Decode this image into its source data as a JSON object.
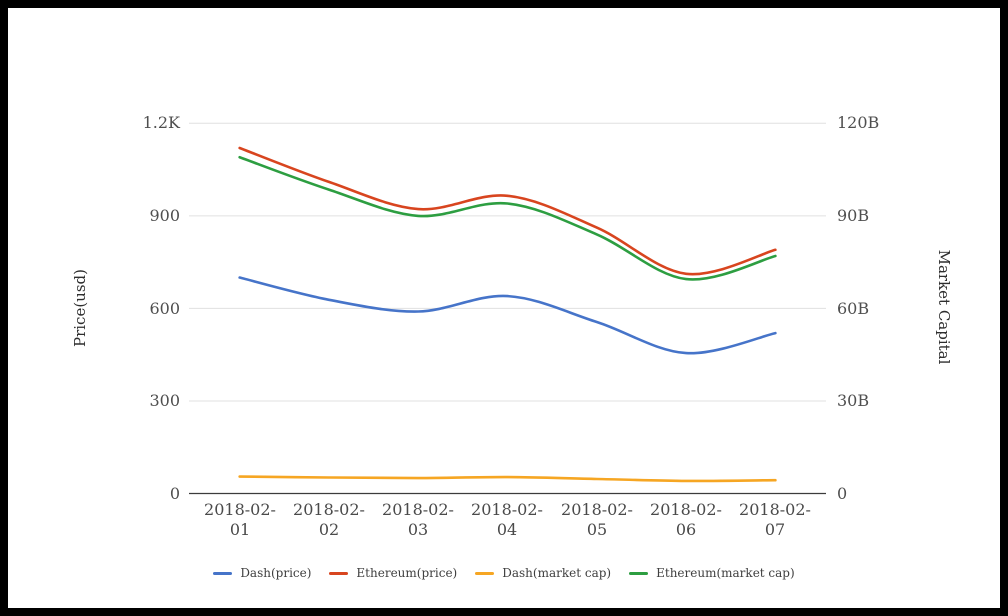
{
  "chart_data": {
    "type": "line",
    "smooth": true,
    "grid": true,
    "legend_position": "bottom",
    "categories": [
      "2018-02-01",
      "2018-02-02",
      "2018-02-03",
      "2018-02-04",
      "2018-02-05",
      "2018-02-06",
      "2018-02-07"
    ],
    "xlabels_line1": [
      "2018-02-",
      "2018-02-",
      "2018-02-",
      "2018-02-",
      "2018-02-",
      "2018-02-",
      "2018-02-"
    ],
    "xlabels_line2": [
      "01",
      "02",
      "03",
      "04",
      "05",
      "06",
      "07"
    ],
    "left_axis": {
      "name": "Price(usd)",
      "ticks": [
        "0",
        "300",
        "600",
        "900",
        "1.2K"
      ],
      "ylim": [
        0,
        1200
      ]
    },
    "right_axis": {
      "name": "Market Capital",
      "ticks": [
        "0",
        "30B",
        "60B",
        "90B",
        "120B"
      ],
      "ylim": [
        0,
        120
      ]
    },
    "series": [
      {
        "name": "Dash(price)",
        "axis": "left",
        "color": "#4674c9",
        "values": [
          700,
          628,
          590,
          640,
          556,
          455,
          520
        ]
      },
      {
        "name": "Ethereum(price)",
        "axis": "left",
        "color": "#d8451f",
        "values": [
          1120,
          1010,
          922,
          965,
          862,
          712,
          790
        ]
      },
      {
        "name": "Dash(market cap)",
        "axis": "right",
        "color": "#f6a623",
        "values": [
          5.5,
          5.2,
          5.0,
          5.3,
          4.7,
          4.1,
          4.3
        ]
      },
      {
        "name": "Ethereum(market cap)",
        "axis": "right",
        "color": "#2d9e41",
        "values": [
          109,
          98.5,
          90,
          94,
          84,
          69.5,
          77
        ]
      }
    ],
    "colors": {
      "gridline": "#e0e0e0",
      "axis_line": "#3c3c3c",
      "tick_text": "#4f4f4f"
    }
  }
}
